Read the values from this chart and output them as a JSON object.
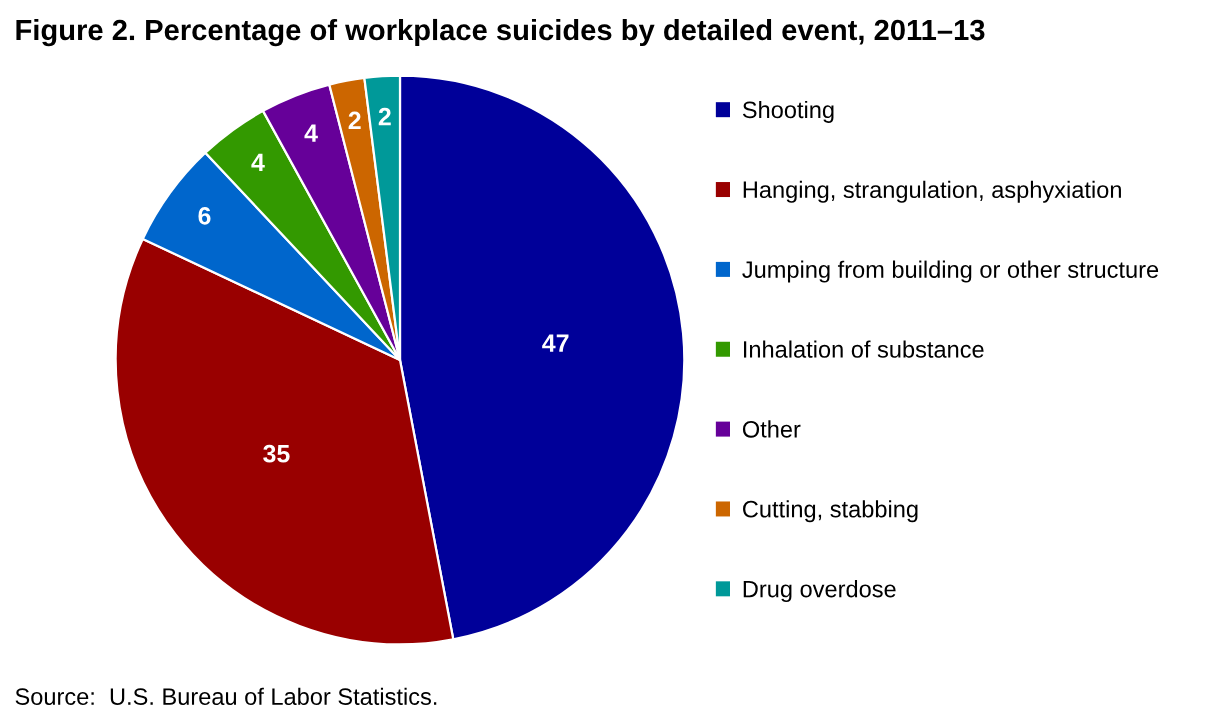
{
  "chart_data": {
    "type": "pie",
    "title": "Figure 2. Percentage of workplace suicides by detailed event, 2011–13",
    "categories": [
      "Shooting",
      "Hanging, strangulation, asphyxiation",
      "Jumping from building or other structure",
      "Inhalation of substance",
      "Other",
      "Cutting, stabbing",
      "Drug overdose"
    ],
    "values": [
      47,
      35,
      6,
      4,
      4,
      2,
      2
    ],
    "colors": [
      "#000099",
      "#990000",
      "#0066cc",
      "#339900",
      "#660099",
      "#cc6600",
      "#009999"
    ],
    "data_labels": true,
    "legend": "right",
    "annotations": [
      "Source:  U.S. Bureau of Labor Statistics."
    ]
  }
}
